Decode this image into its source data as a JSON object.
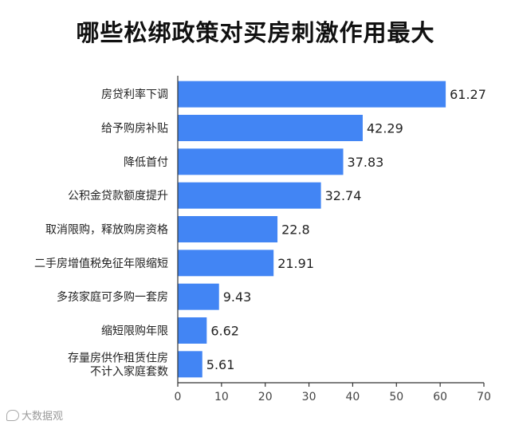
{
  "brand": {
    "text": "大数据观",
    "icon": "brand-logo-icon"
  },
  "colors": {
    "bar": "#4285f4",
    "axis": "#333333",
    "text": "#222222"
  },
  "chart_data": {
    "type": "bar",
    "orientation": "horizontal",
    "title": "哪些松绑政策对买房刺激作用最大",
    "xlabel": "",
    "ylabel": "",
    "xlim": [
      0,
      70
    ],
    "xticks": [
      0,
      10,
      20,
      30,
      40,
      50,
      60,
      70
    ],
    "grid": false,
    "categories": [
      [
        "房贷利率下调"
      ],
      [
        "给予购房补贴"
      ],
      [
        "降低首付"
      ],
      [
        "公积金贷款额度提升"
      ],
      [
        "取消限购，释放购房资格"
      ],
      [
        "二手房增值税免征年限缩短"
      ],
      [
        "多孩家庭可多购一套房"
      ],
      [
        "缩短限购年限"
      ],
      [
        "存量房供作租赁住房",
        "不计入家庭套数"
      ]
    ],
    "values": [
      61.27,
      42.29,
      37.83,
      32.74,
      22.8,
      21.91,
      9.43,
      6.62,
      5.61
    ]
  }
}
